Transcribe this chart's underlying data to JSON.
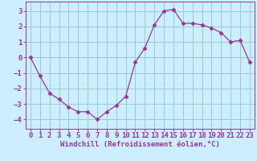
{
  "x": [
    0,
    1,
    2,
    3,
    4,
    5,
    6,
    7,
    8,
    9,
    10,
    11,
    12,
    13,
    14,
    15,
    16,
    17,
    18,
    19,
    20,
    21,
    22,
    23
  ],
  "y": [
    0.0,
    -1.2,
    -2.3,
    -2.7,
    -3.2,
    -3.5,
    -3.5,
    -4.0,
    -3.5,
    -3.1,
    -2.5,
    -0.3,
    0.6,
    2.1,
    3.0,
    3.1,
    2.2,
    2.2,
    2.1,
    1.9,
    1.6,
    1.0,
    1.1,
    -0.3
  ],
  "xlabel": "Windchill (Refroidissement éolien,°C)",
  "xlim": [
    -0.5,
    23.5
  ],
  "ylim": [
    -4.6,
    3.6
  ],
  "yticks": [
    -4,
    -3,
    -2,
    -1,
    0,
    1,
    2,
    3
  ],
  "xticks": [
    0,
    1,
    2,
    3,
    4,
    5,
    6,
    7,
    8,
    9,
    10,
    11,
    12,
    13,
    14,
    15,
    16,
    17,
    18,
    19,
    20,
    21,
    22,
    23
  ],
  "line_color": "#993399",
  "marker": "D",
  "marker_size": 2.5,
  "background_color": "#cceeff",
  "grid_color": "#99cccc",
  "xlabel_fontsize": 6.5,
  "tick_fontsize": 6.5
}
